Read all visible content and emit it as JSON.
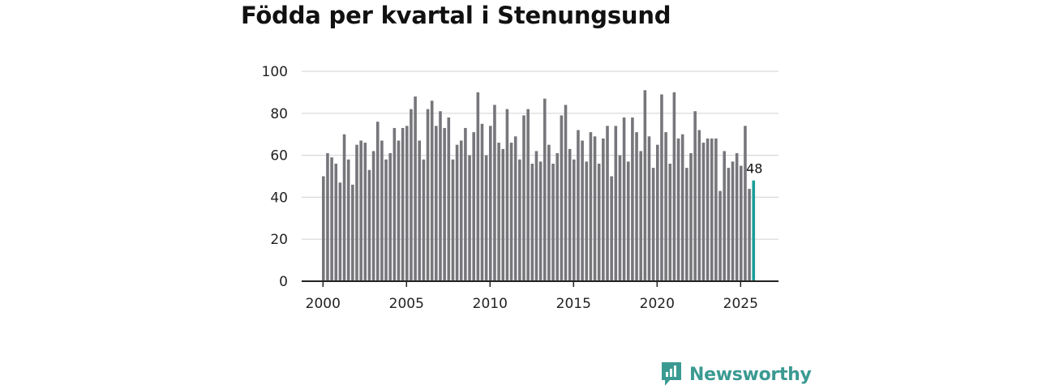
{
  "title": "Födda per kvartal i Stenungsund",
  "brand": {
    "name": "Newsworthy"
  },
  "colors": {
    "bar": "#77767b",
    "highlight": "#1a9e96",
    "grid": "#d9d9d9",
    "axis": "#222222"
  },
  "chart_data": {
    "type": "bar",
    "title": "Födda per kvartal i Stenungsund",
    "xlabel": "",
    "ylabel": "",
    "ylim": [
      0,
      100
    ],
    "yticks": [
      0,
      20,
      40,
      60,
      80,
      100
    ],
    "xticks": [
      "2000",
      "2005",
      "2010",
      "2015",
      "2020",
      "2025"
    ],
    "x_start_year": 2000,
    "periods_per_year": 4,
    "values": [
      50,
      61,
      59,
      56,
      47,
      70,
      58,
      46,
      65,
      67,
      66,
      53,
      62,
      76,
      67,
      58,
      61,
      73,
      67,
      73,
      74,
      82,
      88,
      67,
      58,
      82,
      86,
      74,
      81,
      73,
      78,
      58,
      65,
      67,
      73,
      60,
      71,
      90,
      75,
      60,
      74,
      84,
      66,
      63,
      82,
      66,
      69,
      58,
      79,
      82,
      56,
      62,
      57,
      87,
      65,
      56,
      61,
      79,
      84,
      63,
      58,
      72,
      67,
      57,
      71,
      69,
      56,
      68,
      74,
      50,
      74,
      60,
      78,
      57,
      78,
      71,
      62,
      91,
      69,
      54,
      65,
      89,
      71,
      56,
      90,
      68,
      70,
      54,
      61,
      81,
      72,
      66,
      68,
      68,
      68,
      43,
      62,
      54,
      57,
      61,
      55,
      74,
      44,
      48
    ],
    "highlight_last": true,
    "last_value_label": "48"
  }
}
